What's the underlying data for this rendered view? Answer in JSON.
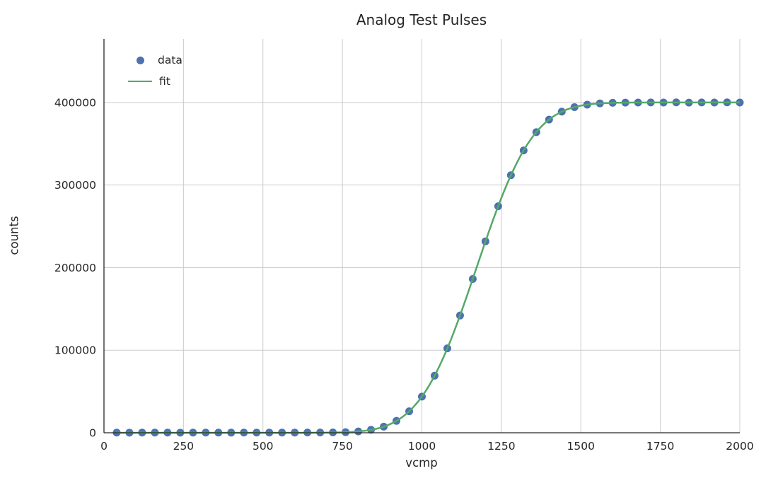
{
  "figure": {
    "background": "#ffffff"
  },
  "chart_data": {
    "type": "scatter",
    "title": "Analog Test Pulses",
    "xlabel": "vcmp",
    "ylabel": "counts",
    "xlim": [
      0,
      2000
    ],
    "ylim": [
      0,
      477000
    ],
    "xticks": [
      0,
      250,
      500,
      750,
      1000,
      1250,
      1500,
      1750,
      2000
    ],
    "yticks": [
      0,
      100000,
      200000,
      300000,
      400000
    ],
    "grid": true,
    "grid_color": "#cccccc",
    "spine_color": "#262626",
    "text_color": "#262626",
    "legend": {
      "position": "upper-left",
      "frame": false,
      "entries": [
        {
          "label": "data",
          "type": "marker",
          "color": "#4c72b0"
        },
        {
          "label": "fit",
          "type": "line",
          "color": "#55a868"
        }
      ]
    },
    "series": [
      {
        "name": "data",
        "type": "scatter",
        "color": "#4c72b0",
        "marker_size": 5.5,
        "x": [
          40,
          80,
          120,
          160,
          200,
          240,
          280,
          320,
          360,
          400,
          440,
          480,
          520,
          560,
          600,
          640,
          680,
          720,
          760,
          800,
          840,
          880,
          920,
          960,
          1000,
          1040,
          1080,
          1120,
          1160,
          1200,
          1240,
          1280,
          1320,
          1360,
          1400,
          1440,
          1480,
          1520,
          1560,
          1600,
          1640,
          1680,
          1720,
          1760,
          1800,
          1840,
          1880,
          1920,
          1960,
          2000
        ],
        "y": [
          200,
          150,
          250,
          180,
          220,
          160,
          240,
          190,
          210,
          170,
          230,
          200,
          260,
          210,
          250,
          300,
          350,
          400,
          700,
          1600,
          3600,
          7400,
          14400,
          26000,
          43800,
          69100,
          102200,
          142000,
          186300,
          231800,
          274400,
          311900,
          341900,
          364100,
          379300,
          388900,
          394400,
          397400,
          398900,
          399600,
          399800,
          399900,
          400000,
          399900,
          400100,
          399800,
          400000,
          399900,
          400100,
          399900
        ]
      },
      {
        "name": "fit",
        "type": "line",
        "color": "#55a868",
        "line_width": 2.5,
        "model": "erf_sigmoid",
        "formula": "y = A/2 * (1 + erf((x - mu)/(sigma*sqrt(2))))",
        "params": {
          "A": 400000,
          "mu": 1172,
          "sigma": 140
        },
        "x_range": [
          40,
          2000
        ]
      }
    ]
  }
}
